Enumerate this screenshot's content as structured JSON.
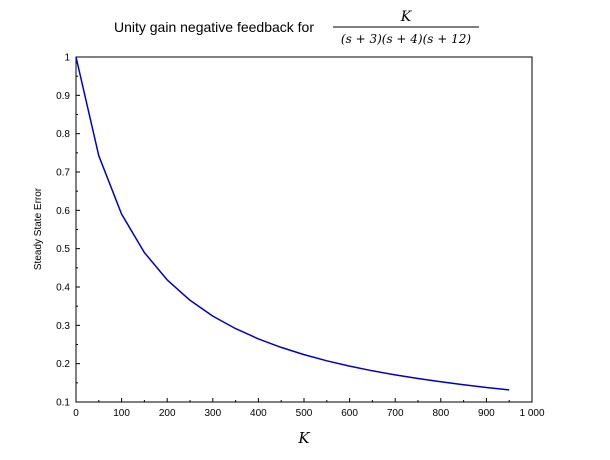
{
  "chart_data": {
    "type": "line",
    "title": "Unity gain negative feedback for",
    "title_math": {
      "numerator": "K",
      "denominator": "(s + 3)(s + 4)(s + 12)"
    },
    "xlabel": "K",
    "ylabel": "Steady State Error",
    "xlim": [
      0,
      1000
    ],
    "ylim": [
      0.1,
      1
    ],
    "grid": false,
    "x_ticks": [
      0,
      100,
      200,
      300,
      400,
      500,
      600,
      700,
      800,
      900,
      1000
    ],
    "x_tick_labels": [
      "0",
      "100",
      "200",
      "300",
      "400",
      "500",
      "600",
      "700",
      "800",
      "900",
      "1 000"
    ],
    "y_ticks": [
      0.1,
      0.2,
      0.3,
      0.4,
      0.5,
      0.6,
      0.7,
      0.8,
      0.9,
      1
    ],
    "y_tick_labels": [
      "0.1",
      "0.2",
      "0.3",
      "0.4",
      "0.5",
      "0.6",
      "0.7",
      "0.8",
      "0.9",
      "1"
    ],
    "series": [
      {
        "color": "#0000cc",
        "x": [
          0,
          50,
          100,
          150,
          200,
          250,
          300,
          350,
          400,
          450,
          500,
          550,
          600,
          650,
          700,
          750,
          800,
          850,
          900,
          950
        ],
        "y": [
          1.0,
          0.7423,
          0.5901,
          0.4897,
          0.4185,
          0.3653,
          0.3242,
          0.2914,
          0.2647,
          0.2424,
          0.2236,
          0.2076,
          0.1937,
          0.1815,
          0.1708,
          0.1612,
          0.1526,
          0.1449,
          0.1379,
          0.1316
        ]
      }
    ]
  }
}
